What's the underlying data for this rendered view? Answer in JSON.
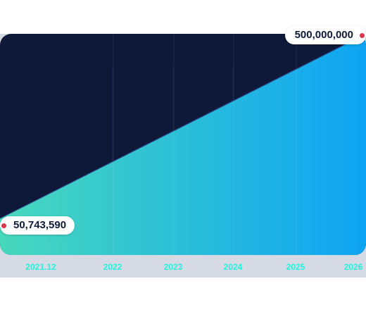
{
  "chart_data": {
    "type": "area",
    "x": [
      "2021.12",
      "2026"
    ],
    "values": [
      50743590,
      500000000
    ],
    "tick_labels": [
      "2021.12",
      "2022",
      "2023",
      "2024",
      "2025",
      "2026"
    ],
    "start_label": "50,743,590",
    "end_label": "500,000,000",
    "title": "",
    "xlabel": "",
    "ylabel": "",
    "grid": false,
    "colors": {
      "background": "#0e1838",
      "area_start": "#48d8bd",
      "area_end": "#0ea4f4",
      "tick_text": "#24f2dc",
      "marker": "#d9364a"
    }
  }
}
